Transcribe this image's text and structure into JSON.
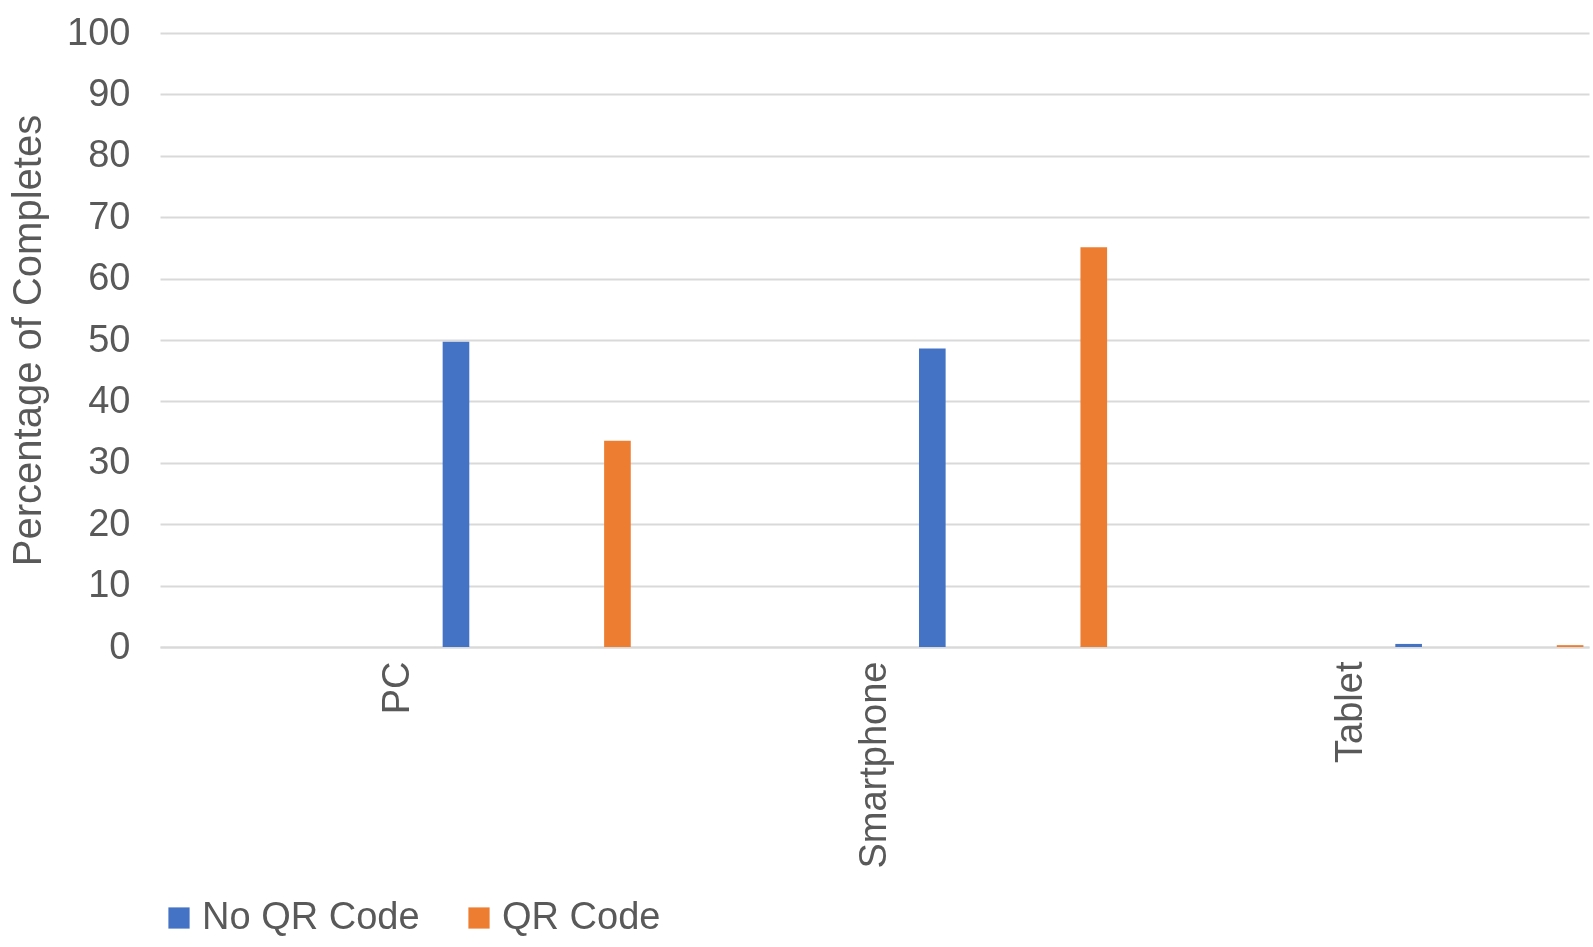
{
  "chart_data": {
    "type": "bar",
    "ylabel": "Percentage of Completes",
    "categories": [
      "PC",
      "Smartphone",
      "Tablet"
    ],
    "series": [
      {
        "name": "No QR Code",
        "color": "#4472c4",
        "values": [
          49.7,
          48.6,
          0.5
        ]
      },
      {
        "name": "QR Code",
        "color": "#ed7d31",
        "values": [
          33.6,
          65.1,
          0.3
        ]
      }
    ],
    "ylim": [
      0,
      100
    ],
    "yticks": [
      0,
      10,
      20,
      30,
      40,
      50,
      60,
      70,
      80,
      90,
      100
    ],
    "grid": "y",
    "legend": "bottom"
  }
}
